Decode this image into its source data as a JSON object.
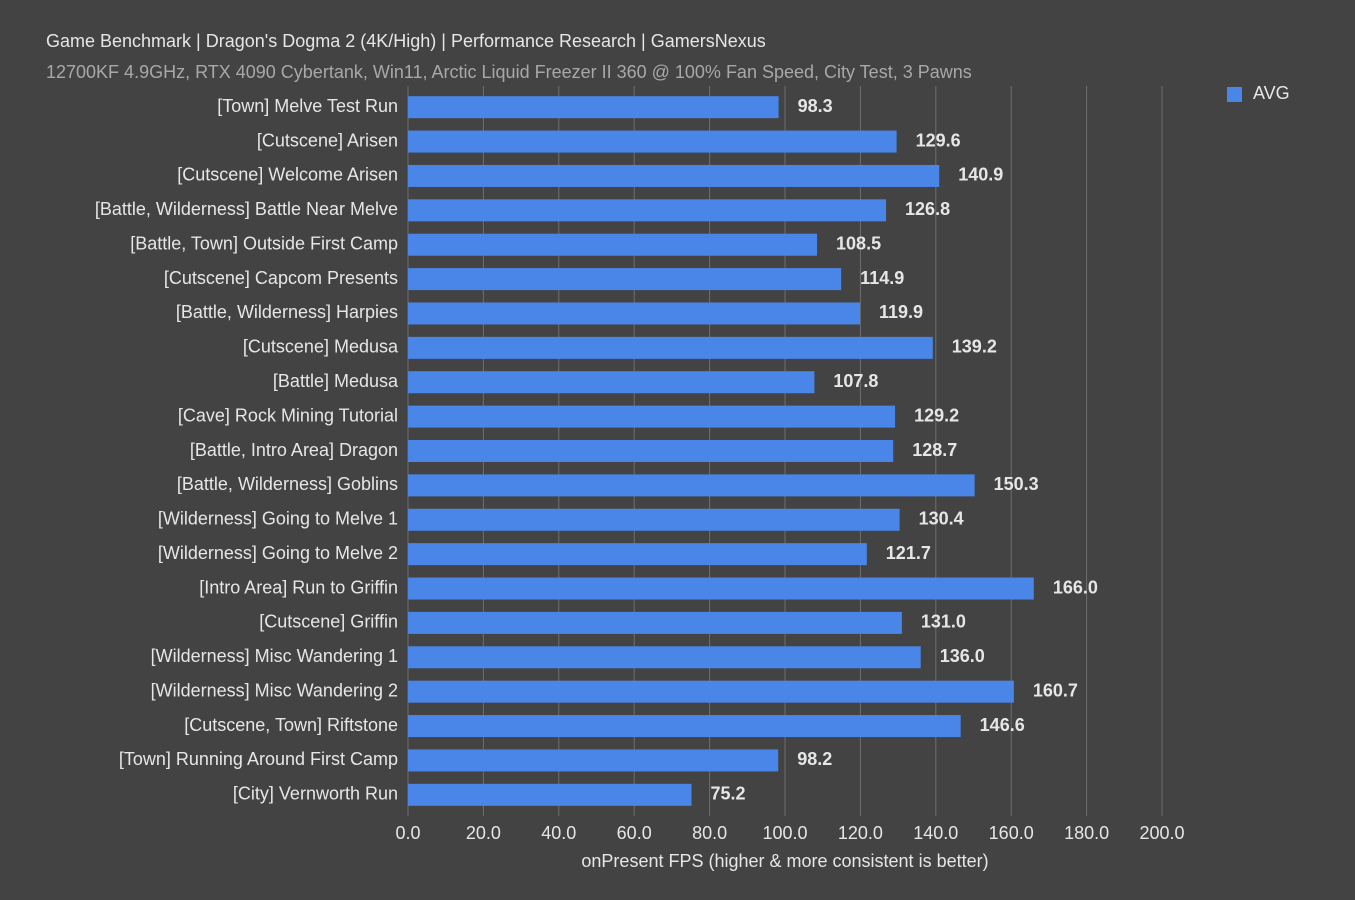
{
  "chart_data": {
    "type": "hbar",
    "title": "Game Benchmark | Dragon's Dogma 2 (4K/High) | Performance Research | GamersNexus",
    "subtitle": "12700KF 4.9GHz, RTX 4090 Cybertank, Win11, Arctic Liquid Freezer II 360 @ 100% Fan Speed, City Test, 3 Pawns",
    "x_label": "onPresent FPS (higher & more consistent is better)",
    "categories": [
      "[Town] Melve Test Run",
      "[Cutscene] Arisen",
      "[Cutscene] Welcome Arisen",
      "[Battle, Wilderness] Battle Near Melve",
      "[Battle, Town] Outside First Camp",
      "[Cutscene] Capcom Presents",
      "[Battle, Wilderness] Harpies",
      "[Cutscene] Medusa",
      "[Battle] Medusa",
      "[Cave] Rock Mining Tutorial",
      "[Battle, Intro Area] Dragon",
      "[Battle, Wilderness] Goblins",
      "[Wilderness] Going to Melve 1",
      "[Wilderness] Going to Melve 2",
      "[Intro Area] Run to Griffin",
      "[Cutscene] Griffin",
      "[Wilderness] Misc Wandering 1",
      "[Wilderness] Misc Wandering 2",
      "[Cutscene, Town] Riftstone",
      "[Town] Running Around First Camp",
      "[City] Vernworth Run"
    ],
    "series": [
      {
        "name": "AVG",
        "color": "#4a86e8",
        "values": [
          98.3,
          129.6,
          140.9,
          126.8,
          108.5,
          114.9,
          119.9,
          139.2,
          107.8,
          129.2,
          128.7,
          150.3,
          130.4,
          121.7,
          166.0,
          131.0,
          136.0,
          160.7,
          146.6,
          98.2,
          75.2
        ],
        "value_labels": [
          "98.3",
          "129.6",
          "140.9",
          "126.8",
          "108.5",
          "114.9",
          "119.9",
          "139.2",
          "107.8",
          "129.2",
          "128.7",
          "150.3",
          "130.4",
          "121.7",
          "166.0",
          "131.0",
          "136.0",
          "160.7",
          "146.6",
          "98.2",
          "75.2"
        ]
      }
    ],
    "xlim": [
      0,
      200
    ],
    "xticks": [
      {
        "value": 0,
        "label": "0.0"
      },
      {
        "value": 20,
        "label": "20.0"
      },
      {
        "value": 40,
        "label": "40.0"
      },
      {
        "value": 60,
        "label": "60.0"
      },
      {
        "value": 80,
        "label": "80.0"
      },
      {
        "value": 100,
        "label": "100.0"
      },
      {
        "value": 120,
        "label": "120.0"
      },
      {
        "value": 140,
        "label": "140.0"
      },
      {
        "value": 160,
        "label": "160.0"
      },
      {
        "value": 180,
        "label": "180.0"
      },
      {
        "value": 200,
        "label": "200.0"
      }
    ],
    "grid": true,
    "legend": "top-right"
  }
}
